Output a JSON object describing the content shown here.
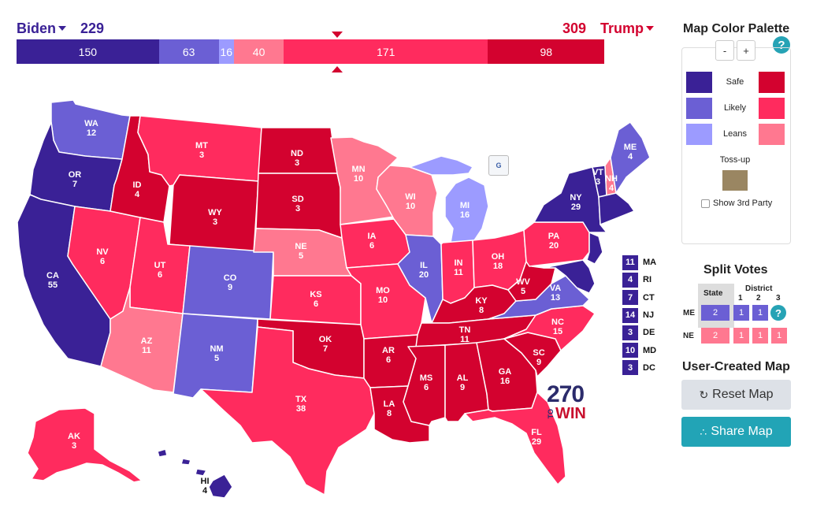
{
  "header": {
    "dem_name": "Biden",
    "dem_total": "229",
    "rep_name": "Trump",
    "rep_total": "309"
  },
  "tally": [
    {
      "value": "150",
      "color": "#3a2196"
    },
    {
      "value": "63",
      "color": "#6b5fd4"
    },
    {
      "value": "16",
      "color": "#9c9bff"
    },
    {
      "value": "40",
      "color": "#ff7890"
    },
    {
      "value": "171",
      "color": "#ff2b5e"
    },
    {
      "value": "98",
      "color": "#d3022f"
    }
  ],
  "colors": {
    "dem_safe": "#3a2196",
    "dem_likely": "#6b5fd4",
    "dem_leans": "#9c9bff",
    "rep_leans": "#ff7890",
    "rep_likely": "#ff2b5e",
    "rep_safe": "#d3022f",
    "tossup": "#9a8662"
  },
  "states": {
    "WA": {
      "ev": "12",
      "rating": "dem_likely"
    },
    "OR": {
      "ev": "7",
      "rating": "dem_safe"
    },
    "CA": {
      "ev": "55",
      "rating": "dem_safe"
    },
    "NV": {
      "ev": "6",
      "rating": "rep_likely"
    },
    "ID": {
      "ev": "4",
      "rating": "rep_safe"
    },
    "MT": {
      "ev": "3",
      "rating": "rep_likely"
    },
    "WY": {
      "ev": "3",
      "rating": "rep_safe"
    },
    "UT": {
      "ev": "6",
      "rating": "rep_likely"
    },
    "AZ": {
      "ev": "11",
      "rating": "rep_leans"
    },
    "CO": {
      "ev": "9",
      "rating": "dem_likely"
    },
    "NM": {
      "ev": "5",
      "rating": "dem_likely"
    },
    "ND": {
      "ev": "3",
      "rating": "rep_safe"
    },
    "SD": {
      "ev": "3",
      "rating": "rep_safe"
    },
    "NE": {
      "ev": "5",
      "rating": "rep_leans"
    },
    "KS": {
      "ev": "6",
      "rating": "rep_likely"
    },
    "OK": {
      "ev": "7",
      "rating": "rep_safe"
    },
    "TX": {
      "ev": "38",
      "rating": "rep_likely"
    },
    "MN": {
      "ev": "10",
      "rating": "rep_leans"
    },
    "IA": {
      "ev": "6",
      "rating": "rep_likely"
    },
    "MO": {
      "ev": "10",
      "rating": "rep_likely"
    },
    "AR": {
      "ev": "6",
      "rating": "rep_safe"
    },
    "LA": {
      "ev": "8",
      "rating": "rep_safe"
    },
    "WI": {
      "ev": "10",
      "rating": "rep_leans"
    },
    "IL": {
      "ev": "20",
      "rating": "dem_likely"
    },
    "MI": {
      "ev": "16",
      "rating": "dem_leans"
    },
    "IN": {
      "ev": "11",
      "rating": "rep_likely"
    },
    "OH": {
      "ev": "18",
      "rating": "rep_likely"
    },
    "KY": {
      "ev": "8",
      "rating": "rep_safe"
    },
    "TN": {
      "ev": "11",
      "rating": "rep_safe"
    },
    "MS": {
      "ev": "6",
      "rating": "rep_safe"
    },
    "AL": {
      "ev": "9",
      "rating": "rep_safe"
    },
    "GA": {
      "ev": "16",
      "rating": "rep_safe"
    },
    "FL": {
      "ev": "29",
      "rating": "rep_likely"
    },
    "SC": {
      "ev": "9",
      "rating": "rep_safe"
    },
    "NC": {
      "ev": "15",
      "rating": "rep_likely"
    },
    "VA": {
      "ev": "13",
      "rating": "dem_likely"
    },
    "WV": {
      "ev": "5",
      "rating": "rep_safe"
    },
    "PA": {
      "ev": "20",
      "rating": "rep_likely"
    },
    "NY": {
      "ev": "29",
      "rating": "dem_safe"
    },
    "VT": {
      "ev": "3",
      "rating": "dem_safe"
    },
    "NH": {
      "ev": "4",
      "rating": "rep_leans"
    },
    "ME": {
      "ev": "4",
      "rating": "dem_likely"
    },
    "AK": {
      "ev": "3",
      "rating": "rep_likely"
    },
    "HI": {
      "ev": "4",
      "rating": "dem_safe"
    }
  },
  "small_states": [
    {
      "ev": "11",
      "abbr": "MA"
    },
    {
      "ev": "4",
      "abbr": "RI"
    },
    {
      "ev": "7",
      "abbr": "CT"
    },
    {
      "ev": "14",
      "abbr": "NJ"
    },
    {
      "ev": "3",
      "abbr": "DE"
    },
    {
      "ev": "10",
      "abbr": "MD"
    },
    {
      "ev": "3",
      "abbr": "DC"
    }
  ],
  "logo": {
    "number": "270",
    "to": "TO",
    "win": "WIN"
  },
  "legend_toggle_icon": "legend-toggle-icon",
  "panel": {
    "palette_title": "Map Color Palette",
    "zoom_out": "-",
    "zoom_in": "+",
    "help": "?",
    "safe": "Safe",
    "likely": "Likely",
    "leans": "Leans",
    "tossup": "Toss-up",
    "show_third": "Show 3rd Party",
    "split_title": "Split Votes",
    "sv_state_hdr": "State",
    "sv_district_hdr": "District",
    "sv_d1": "1",
    "sv_d2": "2",
    "sv_d3": "3",
    "sv_me": "ME",
    "sv_ne": "NE",
    "sv_me_cells": [
      "2",
      "1",
      "1"
    ],
    "sv_ne_cells": [
      "2",
      "1",
      "1",
      "1"
    ],
    "user_title": "User-Created Map",
    "reset_label": "Reset Map",
    "share_label": "Share Map"
  }
}
